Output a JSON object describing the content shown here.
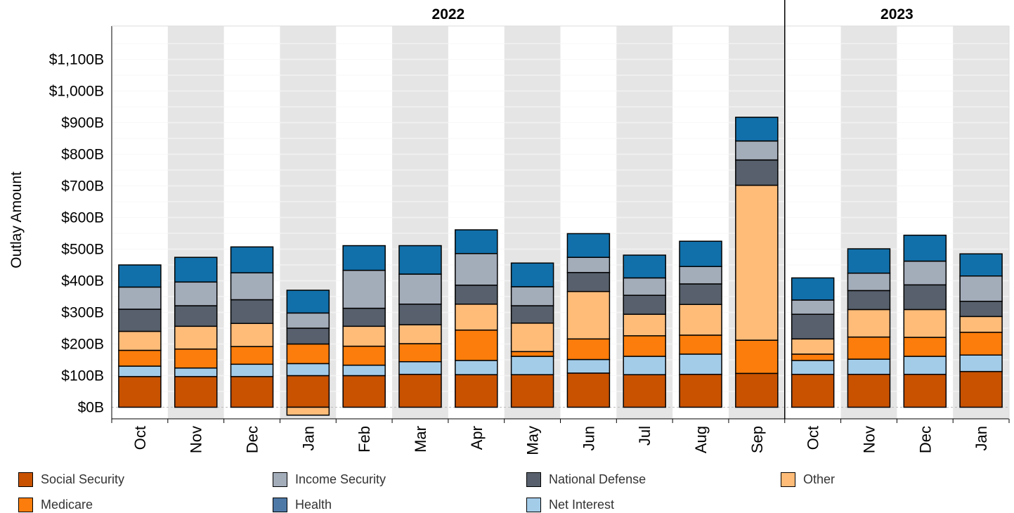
{
  "chart_data": {
    "type": "bar",
    "stacked": true,
    "ylabel": "Outlay Amount",
    "ylim": [
      -35,
      1200
    ],
    "yticks": [
      {
        "value": 0,
        "label": "$0B"
      },
      {
        "value": 100,
        "label": "$100B"
      },
      {
        "value": 200,
        "label": "$200B"
      },
      {
        "value": 300,
        "label": "$300B"
      },
      {
        "value": 400,
        "label": "$400B"
      },
      {
        "value": 500,
        "label": "$500B"
      },
      {
        "value": 600,
        "label": "$600B"
      },
      {
        "value": 700,
        "label": "$700B"
      },
      {
        "value": 800,
        "label": "$800B"
      },
      {
        "value": 900,
        "label": "$900B"
      },
      {
        "value": 1000,
        "label": "$1,000B"
      },
      {
        "value": 1100,
        "label": "$1,100B"
      }
    ],
    "year_groups": [
      {
        "label": "2022",
        "start": 0,
        "end": 11
      },
      {
        "label": "2023",
        "start": 12,
        "end": 15
      }
    ],
    "categories": [
      "Oct",
      "Nov",
      "Dec",
      "Jan",
      "Feb",
      "Mar",
      "Apr",
      "May",
      "Jun",
      "Jul",
      "Aug",
      "Sep",
      "Oct",
      "Nov",
      "Dec",
      "Jan"
    ],
    "series": [
      {
        "name": "Social Security",
        "color": "#c85200",
        "values": [
          97,
          97,
          97,
          100,
          100,
          104,
          103,
          103,
          108,
          103,
          104,
          107,
          104,
          104,
          104,
          113
        ]
      },
      {
        "name": "Net Interest",
        "color": "#a3cce9",
        "values": [
          33,
          27,
          39,
          38,
          33,
          40,
          45,
          58,
          43,
          58,
          64,
          0,
          44,
          48,
          57,
          52
        ]
      },
      {
        "name": "Medicare",
        "color": "#fc7d0b",
        "values": [
          50,
          60,
          56,
          62,
          60,
          57,
          96,
          15,
          65,
          65,
          60,
          105,
          20,
          70,
          60,
          72
        ]
      },
      {
        "name": "Other",
        "color": "#ffbc79",
        "values": [
          60,
          72,
          73,
          -25,
          63,
          60,
          82,
          90,
          150,
          68,
          97,
          490,
          48,
          87,
          88,
          50
        ]
      },
      {
        "name": "National Defense",
        "color": "#57606c",
        "values": [
          70,
          65,
          75,
          50,
          57,
          65,
          60,
          55,
          60,
          60,
          65,
          80,
          78,
          60,
          78,
          48
        ]
      },
      {
        "name": "Income Security",
        "color": "#a3acb9",
        "values": [
          70,
          75,
          85,
          48,
          120,
          95,
          100,
          60,
          48,
          55,
          55,
          60,
          45,
          55,
          75,
          80
        ]
      },
      {
        "name": "Health",
        "color": "#1170aa",
        "values": [
          70,
          78,
          82,
          72,
          78,
          90,
          75,
          75,
          75,
          72,
          80,
          75,
          70,
          77,
          82,
          70
        ]
      }
    ],
    "legend": {
      "placement": "bottom",
      "items": [
        {
          "name": "Social Security",
          "color": "#c85200"
        },
        {
          "name": "Income Security",
          "color": "#a3acb9"
        },
        {
          "name": "National Defense",
          "color": "#57606c"
        },
        {
          "name": "Other",
          "color": "#ffbc79"
        },
        {
          "name": "Medicare",
          "color": "#fc7d0b"
        },
        {
          "name": "Health",
          "color": "#4e79a7"
        },
        {
          "name": "Net Interest",
          "color": "#a3cce9"
        }
      ]
    },
    "grid": true
  }
}
